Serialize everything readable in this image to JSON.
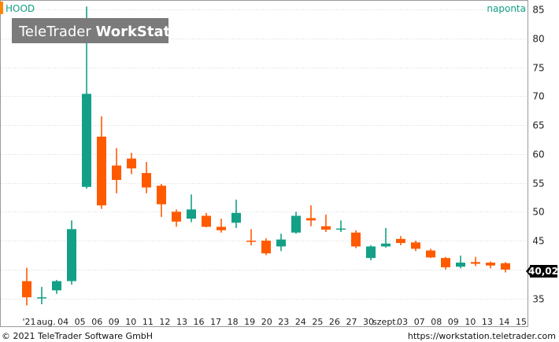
{
  "header": {
    "symbol": "HOOD",
    "period": "naponta"
  },
  "watermark": {
    "brand_light": "TeleTrader ",
    "brand_bold": "WorkStation"
  },
  "footer": {
    "copyright": "© 2021 TeleTrader Software GmbH",
    "url": "https://workstation.teletrader.com"
  },
  "last_price": {
    "label": "40,02"
  },
  "colors": {
    "up": "#13a087",
    "down": "#ff5a00",
    "accent_bar": "#ff8800",
    "last_price_bg": "#000000"
  },
  "chart_data": {
    "type": "candlestick",
    "ylim": [
      32.5,
      86.5
    ],
    "y_ticks": [
      35,
      40,
      45,
      50,
      55,
      60,
      65,
      70,
      75,
      80,
      85
    ],
    "y_tick_labels": [
      "35",
      "40",
      "45",
      "50",
      "55",
      "60",
      "65",
      "70",
      "75",
      "80",
      "85"
    ],
    "x_tick_labels": [
      "'21",
      "aug.",
      "04",
      "05",
      "06",
      "09",
      "10",
      "11",
      "12",
      "13",
      "16",
      "17",
      "18",
      "19",
      "20",
      "23",
      "24",
      "25",
      "26",
      "27",
      "30",
      "szept.",
      "03",
      "07",
      "08",
      "09",
      "10",
      "13",
      "14",
      "15"
    ],
    "grid": true,
    "candles": [
      {
        "open": 38.0,
        "high": 40.3,
        "low": 33.8,
        "close": 35.2
      },
      {
        "open": 35.1,
        "high": 37.0,
        "low": 34.0,
        "close": 35.2
      },
      {
        "open": 36.4,
        "high": 38.2,
        "low": 35.8,
        "close": 38.0
      },
      {
        "open": 38.0,
        "high": 48.5,
        "low": 37.4,
        "close": 47.0
      },
      {
        "open": 54.3,
        "high": 85.5,
        "low": 54.0,
        "close": 70.4
      },
      {
        "open": 63.0,
        "high": 66.5,
        "low": 50.5,
        "close": 51.1
      },
      {
        "open": 58.0,
        "high": 61.0,
        "low": 53.2,
        "close": 55.5
      },
      {
        "open": 59.2,
        "high": 60.2,
        "low": 56.5,
        "close": 57.5
      },
      {
        "open": 56.7,
        "high": 58.6,
        "low": 53.2,
        "close": 54.2
      },
      {
        "open": 54.5,
        "high": 54.8,
        "low": 49.1,
        "close": 51.3
      },
      {
        "open": 50.0,
        "high": 50.4,
        "low": 47.4,
        "close": 48.3
      },
      {
        "open": 48.8,
        "high": 53.0,
        "low": 48.2,
        "close": 50.4
      },
      {
        "open": 49.3,
        "high": 49.8,
        "low": 47.3,
        "close": 47.4
      },
      {
        "open": 47.4,
        "high": 48.8,
        "low": 46.4,
        "close": 46.8
      },
      {
        "open": 48.1,
        "high": 52.1,
        "low": 47.2,
        "close": 49.8
      },
      {
        "open": 45.0,
        "high": 47.0,
        "low": 44.2,
        "close": 44.8
      },
      {
        "open": 45.0,
        "high": 45.4,
        "low": 42.5,
        "close": 42.8
      },
      {
        "open": 44.0,
        "high": 46.2,
        "low": 43.2,
        "close": 45.2
      },
      {
        "open": 46.4,
        "high": 50.0,
        "low": 46.2,
        "close": 49.3
      },
      {
        "open": 48.9,
        "high": 51.1,
        "low": 47.5,
        "close": 48.5
      },
      {
        "open": 47.5,
        "high": 49.5,
        "low": 46.5,
        "close": 46.9
      },
      {
        "open": 47.1,
        "high": 48.5,
        "low": 46.5,
        "close": 47.1
      },
      {
        "open": 46.4,
        "high": 46.8,
        "low": 43.7,
        "close": 44.0
      },
      {
        "open": 42.0,
        "high": 44.2,
        "low": 41.6,
        "close": 44.0
      },
      {
        "open": 44.0,
        "high": 47.2,
        "low": 43.8,
        "close": 44.5
      },
      {
        "open": 45.3,
        "high": 45.8,
        "low": 44.2,
        "close": 44.6
      },
      {
        "open": 44.7,
        "high": 45.0,
        "low": 43.2,
        "close": 43.6
      },
      {
        "open": 43.3,
        "high": 43.6,
        "low": 42.0,
        "close": 42.1
      },
      {
        "open": 42.0,
        "high": 42.2,
        "low": 40.0,
        "close": 40.4
      },
      {
        "open": 40.5,
        "high": 42.4,
        "low": 40.2,
        "close": 41.2
      },
      {
        "open": 41.3,
        "high": 42.2,
        "low": 40.6,
        "close": 41.0
      },
      {
        "open": 41.2,
        "high": 41.4,
        "low": 40.2,
        "close": 40.7
      },
      {
        "open": 41.1,
        "high": 41.3,
        "low": 39.5,
        "close": 40.0
      }
    ]
  }
}
